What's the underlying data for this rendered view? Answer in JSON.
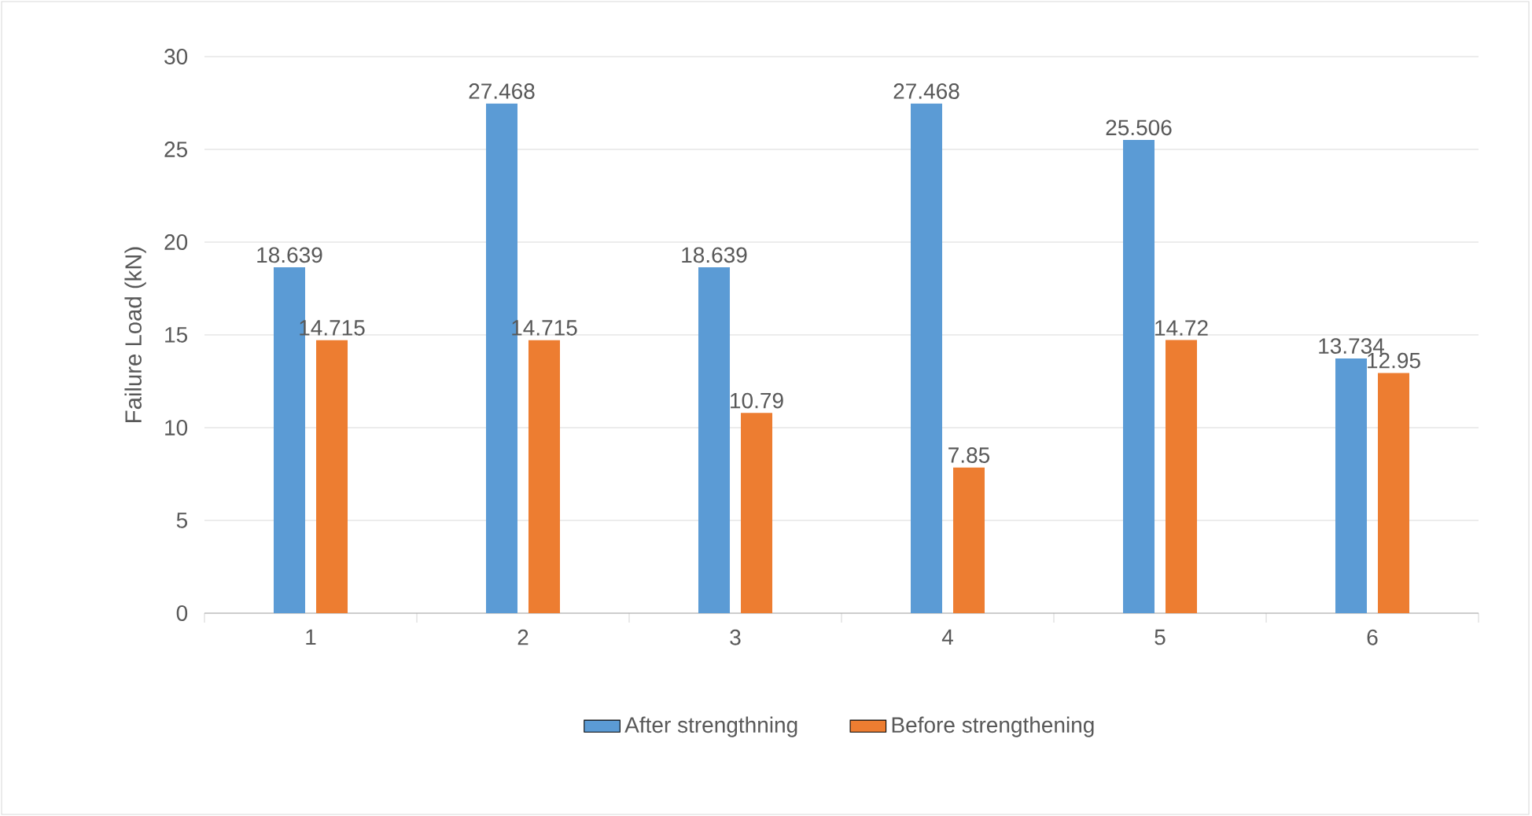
{
  "chart_data": {
    "type": "bar",
    "ylabel": "Failure Load (kN)",
    "categories": [
      "1",
      "2",
      "3",
      "4",
      "5",
      "6"
    ],
    "series": [
      {
        "name": "After strengthning",
        "color": "#5b9bd5",
        "values": [
          18.639,
          27.468,
          18.639,
          27.468,
          25.506,
          13.734
        ]
      },
      {
        "name": "Before strengthening",
        "color": "#ed7d31",
        "values": [
          14.715,
          14.715,
          10.79,
          7.85,
          14.72,
          12.95
        ]
      }
    ],
    "ylim": [
      0,
      30
    ],
    "yticks": [
      0,
      5,
      10,
      15,
      20,
      25,
      30
    ],
    "grid": "y",
    "legend": "bottom",
    "data_labels": true
  }
}
